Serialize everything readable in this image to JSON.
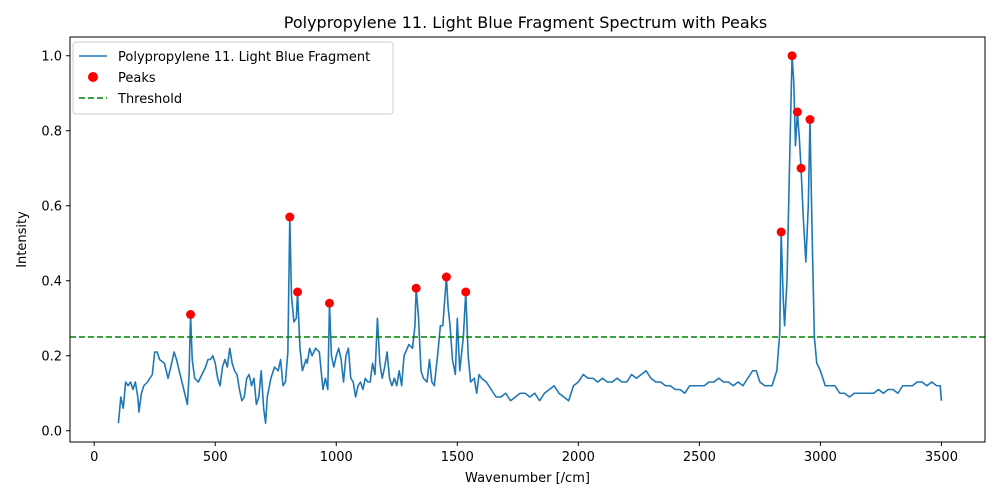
{
  "chart_data": {
    "type": "line",
    "title": "Polypropylene 11. Light Blue Fragment Spectrum with Peaks",
    "xlabel": "Wavenumber [/cm]",
    "ylabel": "Intensity",
    "xlim": [
      -100,
      3680
    ],
    "ylim": [
      -0.03,
      1.05
    ],
    "x_ticks": [
      0,
      500,
      1000,
      1500,
      2000,
      2500,
      3000,
      3500
    ],
    "y_ticks": [
      0.0,
      0.2,
      0.4,
      0.6,
      0.8,
      1.0
    ],
    "x_tick_labels": [
      "0",
      "500",
      "1000",
      "1500",
      "2000",
      "2500",
      "3000",
      "3500"
    ],
    "y_tick_labels": [
      "0.0",
      "0.2",
      "0.4",
      "0.6",
      "0.8",
      "1.0"
    ],
    "grid": false,
    "legend_position": "top-left",
    "colors": {
      "spectrum": "#1f77b4",
      "peaks": "#ff0000",
      "threshold": "#008000"
    },
    "series": [
      {
        "name": "Polypropylene 11. Light Blue Fragment",
        "kind": "line",
        "points": [
          [
            100,
            0.02
          ],
          [
            110,
            0.09
          ],
          [
            120,
            0.06
          ],
          [
            130,
            0.13
          ],
          [
            140,
            0.12
          ],
          [
            150,
            0.13
          ],
          [
            160,
            0.11
          ],
          [
            170,
            0.13
          ],
          [
            180,
            0.09
          ],
          [
            185,
            0.05
          ],
          [
            195,
            0.1
          ],
          [
            205,
            0.12
          ],
          [
            220,
            0.13
          ],
          [
            240,
            0.15
          ],
          [
            250,
            0.21
          ],
          [
            260,
            0.21
          ],
          [
            270,
            0.19
          ],
          [
            290,
            0.18
          ],
          [
            305,
            0.14
          ],
          [
            320,
            0.18
          ],
          [
            330,
            0.21
          ],
          [
            340,
            0.19
          ],
          [
            355,
            0.15
          ],
          [
            370,
            0.11
          ],
          [
            385,
            0.07
          ],
          [
            392,
            0.15
          ],
          [
            398,
            0.31
          ],
          [
            405,
            0.19
          ],
          [
            415,
            0.14
          ],
          [
            430,
            0.13
          ],
          [
            445,
            0.15
          ],
          [
            460,
            0.17
          ],
          [
            470,
            0.19
          ],
          [
            480,
            0.19
          ],
          [
            490,
            0.2
          ],
          [
            500,
            0.18
          ],
          [
            510,
            0.14
          ],
          [
            520,
            0.12
          ],
          [
            530,
            0.17
          ],
          [
            540,
            0.19
          ],
          [
            550,
            0.17
          ],
          [
            560,
            0.22
          ],
          [
            570,
            0.18
          ],
          [
            580,
            0.16
          ],
          [
            590,
            0.15
          ],
          [
            600,
            0.11
          ],
          [
            610,
            0.08
          ],
          [
            620,
            0.09
          ],
          [
            630,
            0.14
          ],
          [
            640,
            0.15
          ],
          [
            650,
            0.12
          ],
          [
            660,
            0.14
          ],
          [
            670,
            0.07
          ],
          [
            680,
            0.09
          ],
          [
            690,
            0.16
          ],
          [
            700,
            0.06
          ],
          [
            708,
            0.02
          ],
          [
            715,
            0.09
          ],
          [
            730,
            0.14
          ],
          [
            745,
            0.17
          ],
          [
            760,
            0.16
          ],
          [
            770,
            0.19
          ],
          [
            780,
            0.12
          ],
          [
            790,
            0.13
          ],
          [
            800,
            0.21
          ],
          [
            808,
            0.57
          ],
          [
            815,
            0.36
          ],
          [
            825,
            0.29
          ],
          [
            835,
            0.3
          ],
          [
            840,
            0.37
          ],
          [
            850,
            0.22
          ],
          [
            860,
            0.16
          ],
          [
            875,
            0.19
          ],
          [
            880,
            0.18
          ],
          [
            890,
            0.22
          ],
          [
            900,
            0.2
          ],
          [
            915,
            0.22
          ],
          [
            930,
            0.21
          ],
          [
            945,
            0.11
          ],
          [
            955,
            0.14
          ],
          [
            965,
            0.11
          ],
          [
            972,
            0.34
          ],
          [
            980,
            0.2
          ],
          [
            990,
            0.17
          ],
          [
            1000,
            0.2
          ],
          [
            1010,
            0.22
          ],
          [
            1020,
            0.19
          ],
          [
            1030,
            0.13
          ],
          [
            1040,
            0.2
          ],
          [
            1050,
            0.22
          ],
          [
            1060,
            0.14
          ],
          [
            1070,
            0.13
          ],
          [
            1080,
            0.09
          ],
          [
            1090,
            0.12
          ],
          [
            1100,
            0.13
          ],
          [
            1110,
            0.11
          ],
          [
            1120,
            0.14
          ],
          [
            1130,
            0.13
          ],
          [
            1140,
            0.13
          ],
          [
            1150,
            0.18
          ],
          [
            1160,
            0.15
          ],
          [
            1170,
            0.3
          ],
          [
            1180,
            0.18
          ],
          [
            1190,
            0.14
          ],
          [
            1200,
            0.17
          ],
          [
            1210,
            0.21
          ],
          [
            1220,
            0.14
          ],
          [
            1230,
            0.12
          ],
          [
            1240,
            0.14
          ],
          [
            1250,
            0.12
          ],
          [
            1260,
            0.16
          ],
          [
            1270,
            0.12
          ],
          [
            1280,
            0.2
          ],
          [
            1300,
            0.23
          ],
          [
            1315,
            0.22
          ],
          [
            1325,
            0.28
          ],
          [
            1330,
            0.38
          ],
          [
            1340,
            0.3
          ],
          [
            1350,
            0.16
          ],
          [
            1360,
            0.14
          ],
          [
            1375,
            0.13
          ],
          [
            1385,
            0.19
          ],
          [
            1395,
            0.13
          ],
          [
            1405,
            0.12
          ],
          [
            1420,
            0.21
          ],
          [
            1430,
            0.28
          ],
          [
            1440,
            0.28
          ],
          [
            1455,
            0.41
          ],
          [
            1462,
            0.33
          ],
          [
            1470,
            0.28
          ],
          [
            1480,
            0.19
          ],
          [
            1492,
            0.15
          ],
          [
            1500,
            0.3
          ],
          [
            1510,
            0.16
          ],
          [
            1525,
            0.25
          ],
          [
            1535,
            0.37
          ],
          [
            1545,
            0.2
          ],
          [
            1555,
            0.13
          ],
          [
            1570,
            0.14
          ],
          [
            1580,
            0.1
          ],
          [
            1590,
            0.15
          ],
          [
            1600,
            0.14
          ],
          [
            1620,
            0.13
          ],
          [
            1640,
            0.11
          ],
          [
            1660,
            0.09
          ],
          [
            1680,
            0.09
          ],
          [
            1700,
            0.1
          ],
          [
            1720,
            0.08
          ],
          [
            1740,
            0.09
          ],
          [
            1760,
            0.1
          ],
          [
            1780,
            0.1
          ],
          [
            1800,
            0.09
          ],
          [
            1820,
            0.1
          ],
          [
            1840,
            0.08
          ],
          [
            1860,
            0.1
          ],
          [
            1880,
            0.11
          ],
          [
            1900,
            0.12
          ],
          [
            1920,
            0.1
          ],
          [
            1940,
            0.09
          ],
          [
            1960,
            0.08
          ],
          [
            1980,
            0.12
          ],
          [
            2000,
            0.13
          ],
          [
            2020,
            0.15
          ],
          [
            2040,
            0.14
          ],
          [
            2060,
            0.14
          ],
          [
            2080,
            0.13
          ],
          [
            2100,
            0.14
          ],
          [
            2120,
            0.13
          ],
          [
            2140,
            0.13
          ],
          [
            2160,
            0.14
          ],
          [
            2180,
            0.13
          ],
          [
            2200,
            0.13
          ],
          [
            2220,
            0.15
          ],
          [
            2240,
            0.14
          ],
          [
            2260,
            0.15
          ],
          [
            2280,
            0.16
          ],
          [
            2300,
            0.14
          ],
          [
            2320,
            0.13
          ],
          [
            2340,
            0.13
          ],
          [
            2360,
            0.12
          ],
          [
            2380,
            0.12
          ],
          [
            2400,
            0.11
          ],
          [
            2420,
            0.11
          ],
          [
            2440,
            0.1
          ],
          [
            2460,
            0.12
          ],
          [
            2480,
            0.12
          ],
          [
            2500,
            0.12
          ],
          [
            2520,
            0.12
          ],
          [
            2540,
            0.13
          ],
          [
            2560,
            0.13
          ],
          [
            2580,
            0.14
          ],
          [
            2600,
            0.13
          ],
          [
            2620,
            0.13
          ],
          [
            2640,
            0.12
          ],
          [
            2660,
            0.13
          ],
          [
            2680,
            0.12
          ],
          [
            2700,
            0.14
          ],
          [
            2720,
            0.16
          ],
          [
            2735,
            0.16
          ],
          [
            2750,
            0.13
          ],
          [
            2770,
            0.12
          ],
          [
            2800,
            0.12
          ],
          [
            2820,
            0.16
          ],
          [
            2832,
            0.26
          ],
          [
            2838,
            0.53
          ],
          [
            2846,
            0.36
          ],
          [
            2852,
            0.28
          ],
          [
            2862,
            0.4
          ],
          [
            2875,
            0.78
          ],
          [
            2883,
            1.0
          ],
          [
            2890,
            0.93
          ],
          [
            2897,
            0.76
          ],
          [
            2905,
            0.85
          ],
          [
            2913,
            0.78
          ],
          [
            2920,
            0.7
          ],
          [
            2930,
            0.56
          ],
          [
            2940,
            0.45
          ],
          [
            2950,
            0.6
          ],
          [
            2957,
            0.83
          ],
          [
            2965,
            0.55
          ],
          [
            2975,
            0.25
          ],
          [
            2985,
            0.18
          ],
          [
            3000,
            0.16
          ],
          [
            3020,
            0.12
          ],
          [
            3040,
            0.12
          ],
          [
            3060,
            0.12
          ],
          [
            3080,
            0.1
          ],
          [
            3100,
            0.1
          ],
          [
            3120,
            0.09
          ],
          [
            3140,
            0.1
          ],
          [
            3160,
            0.1
          ],
          [
            3180,
            0.1
          ],
          [
            3200,
            0.1
          ],
          [
            3220,
            0.1
          ],
          [
            3240,
            0.11
          ],
          [
            3260,
            0.1
          ],
          [
            3280,
            0.11
          ],
          [
            3300,
            0.11
          ],
          [
            3320,
            0.1
          ],
          [
            3340,
            0.12
          ],
          [
            3360,
            0.12
          ],
          [
            3380,
            0.12
          ],
          [
            3400,
            0.13
          ],
          [
            3420,
            0.13
          ],
          [
            3440,
            0.12
          ],
          [
            3460,
            0.13
          ],
          [
            3480,
            0.12
          ],
          [
            3495,
            0.12
          ],
          [
            3500,
            0.08
          ]
        ]
      },
      {
        "name": "Peaks",
        "kind": "scatter",
        "points": [
          [
            398,
            0.31
          ],
          [
            808,
            0.57
          ],
          [
            840,
            0.37
          ],
          [
            972,
            0.34
          ],
          [
            1330,
            0.38
          ],
          [
            1455,
            0.41
          ],
          [
            1535,
            0.37
          ],
          [
            2838,
            0.53
          ],
          [
            2883,
            1.0
          ],
          [
            2905,
            0.85
          ],
          [
            2920,
            0.7
          ],
          [
            2957,
            0.83
          ]
        ]
      },
      {
        "name": "Threshold",
        "kind": "hline",
        "y": 0.25
      }
    ]
  }
}
